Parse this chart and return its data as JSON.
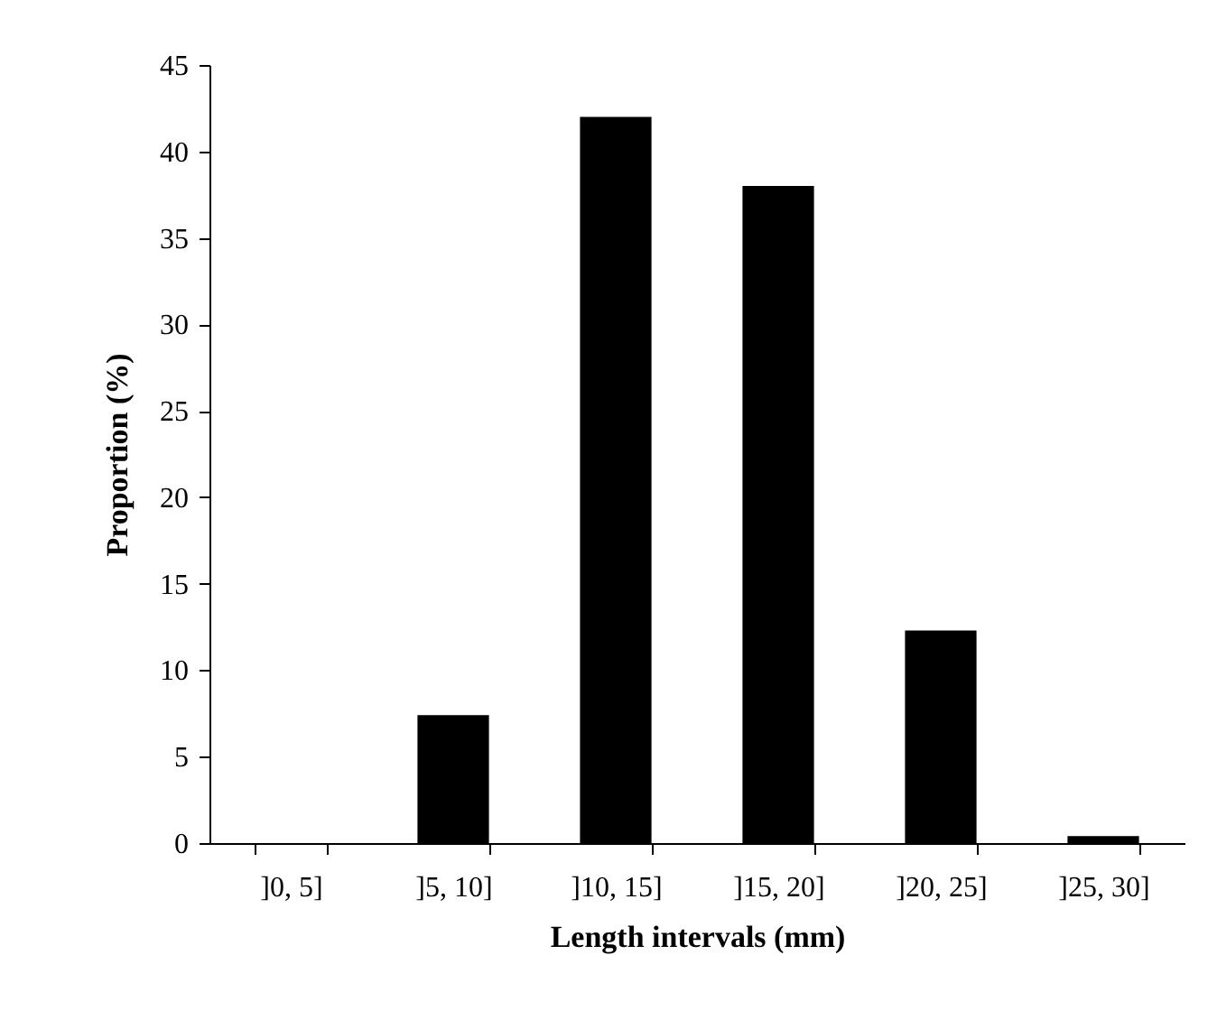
{
  "chart_data": {
    "type": "bar",
    "xlabel": "Length intervals (mm)",
    "ylabel": "Proportion (%)",
    "categories": [
      "]0, 5]",
      "]5, 10]",
      "]10, 15]",
      "]15, 20]",
      "]20, 25]",
      "]25, 30]"
    ],
    "values": [
      0,
      7.4,
      42,
      38,
      12.3,
      0.4
    ],
    "color": "#000000",
    "ylim": [
      0,
      45
    ],
    "yticks": [
      0,
      5,
      10,
      15,
      20,
      25,
      30,
      35,
      40,
      45
    ],
    "grid": false
  }
}
